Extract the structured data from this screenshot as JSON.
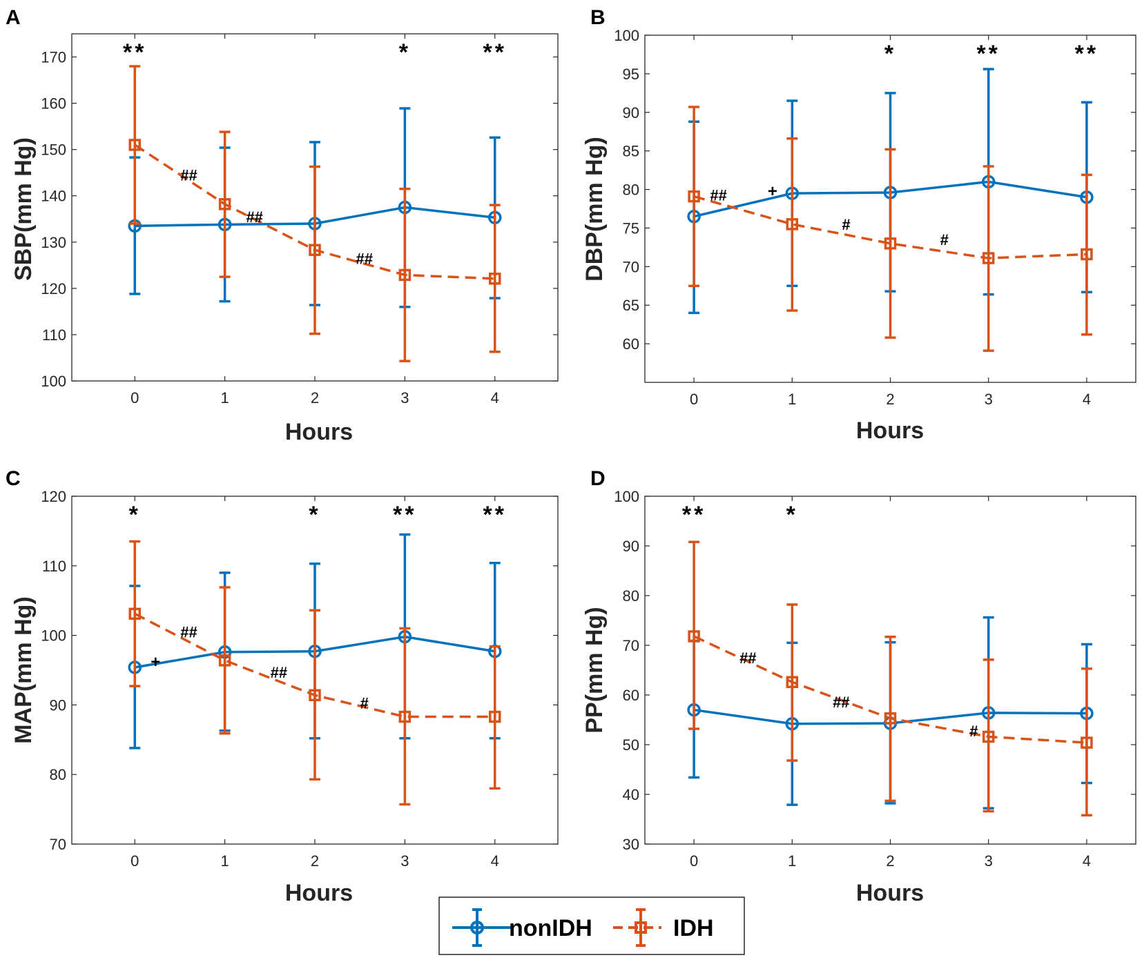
{
  "colors": {
    "nonIDH": "#0072BD",
    "IDH": "#D95319",
    "axis": "#262626"
  },
  "legend": {
    "nonIDH": "nonIDH",
    "IDH": "IDH"
  },
  "chart_data": [
    {
      "id": "A",
      "label": "A",
      "type": "line",
      "xlabel": "Hours",
      "ylabel": "SBP(mm Hg)",
      "x": [
        0,
        1,
        2,
        3,
        4
      ],
      "xticks": [
        "0",
        "1",
        "2",
        "3",
        "4"
      ],
      "ylim": [
        100,
        175
      ],
      "yticks": [
        100,
        110,
        120,
        130,
        140,
        150,
        160,
        170
      ],
      "series": [
        {
          "name": "nonIDH",
          "values": [
            133.5,
            133.8,
            134.0,
            137.5,
            135.3
          ],
          "lower": [
            118.8,
            117.2,
            116.4,
            116.0,
            117.9
          ],
          "upper": [
            148.3,
            150.4,
            151.6,
            158.9,
            152.6
          ]
        },
        {
          "name": "IDH",
          "values": [
            151.0,
            138.2,
            128.3,
            122.9,
            122.1
          ],
          "lower": [
            134.0,
            122.5,
            110.2,
            104.3,
            106.3
          ],
          "upper": [
            168.0,
            153.8,
            146.3,
            141.5,
            138.0
          ]
        }
      ],
      "stars": [
        {
          "x": 0,
          "text": "**"
        },
        {
          "x": 3,
          "text": "*"
        },
        {
          "x": 4,
          "text": "**"
        }
      ],
      "hash": [
        {
          "x": 0.6,
          "y": 144.5,
          "text": "##"
        },
        {
          "x": 1.33,
          "y": 135.5,
          "text": "##"
        },
        {
          "x": 2.55,
          "y": 126.5,
          "text": "##"
        }
      ],
      "plus": []
    },
    {
      "id": "B",
      "label": "B",
      "type": "line",
      "xlabel": "Hours",
      "ylabel": "DBP(mm Hg)",
      "x": [
        0,
        1,
        2,
        3,
        4
      ],
      "xticks": [
        "0",
        "1",
        "2",
        "3",
        "4"
      ],
      "ylim": [
        55,
        100
      ],
      "yticks": [
        60,
        65,
        70,
        75,
        80,
        85,
        90,
        95,
        100
      ],
      "series": [
        {
          "name": "nonIDH",
          "values": [
            76.5,
            79.5,
            79.6,
            81.0,
            79.0
          ],
          "lower": [
            64.0,
            67.5,
            66.8,
            66.4,
            66.7
          ],
          "upper": [
            88.8,
            91.5,
            92.5,
            95.6,
            91.3
          ]
        },
        {
          "name": "IDH",
          "values": [
            79.1,
            75.5,
            73.0,
            71.1,
            71.6
          ],
          "lower": [
            67.5,
            64.3,
            60.8,
            59.1,
            61.2
          ],
          "upper": [
            90.7,
            86.6,
            85.2,
            83.0,
            81.9
          ]
        }
      ],
      "stars": [
        {
          "x": 2,
          "text": "*"
        },
        {
          "x": 3,
          "text": "**"
        },
        {
          "x": 4,
          "text": "**"
        }
      ],
      "hash": [
        {
          "x": 0.25,
          "y": 79.3,
          "text": "##"
        },
        {
          "x": 1.55,
          "y": 75.5,
          "text": "#"
        },
        {
          "x": 2.55,
          "y": 73.5,
          "text": "#"
        }
      ],
      "plus": [
        {
          "x": 0.8,
          "y": 79.8,
          "text": "+"
        }
      ]
    },
    {
      "id": "C",
      "label": "C",
      "type": "line",
      "xlabel": "Hours",
      "ylabel": "MAP(mm Hg)",
      "x": [
        0,
        1,
        2,
        3,
        4
      ],
      "xticks": [
        "0",
        "1",
        "2",
        "3",
        "4"
      ],
      "ylim": [
        70,
        120
      ],
      "yticks": [
        70,
        80,
        90,
        100,
        110,
        120
      ],
      "series": [
        {
          "name": "nonIDH",
          "values": [
            95.4,
            97.6,
            97.7,
            99.8,
            97.7
          ],
          "lower": [
            83.8,
            86.3,
            85.2,
            85.2,
            85.2
          ],
          "upper": [
            107.1,
            109.0,
            110.3,
            114.5,
            110.4
          ]
        },
        {
          "name": "IDH",
          "values": [
            103.1,
            96.4,
            91.4,
            88.3,
            88.3
          ],
          "lower": [
            92.7,
            85.9,
            79.3,
            75.7,
            78.0
          ],
          "upper": [
            113.5,
            106.9,
            103.6,
            101.0,
            98.4
          ]
        }
      ],
      "stars": [
        {
          "x": 0,
          "text": "*"
        },
        {
          "x": 2,
          "text": "*"
        },
        {
          "x": 3,
          "text": "**"
        },
        {
          "x": 4,
          "text": "**"
        }
      ],
      "hash": [
        {
          "x": 0.6,
          "y": 100.5,
          "text": "##"
        },
        {
          "x": 1.6,
          "y": 94.7,
          "text": "##"
        },
        {
          "x": 2.55,
          "y": 90.3,
          "text": "#"
        }
      ],
      "plus": [
        {
          "x": 0.23,
          "y": 96.2,
          "text": "+"
        }
      ]
    },
    {
      "id": "D",
      "label": "D",
      "type": "line",
      "xlabel": "Hours",
      "ylabel": "PP(mm Hg)",
      "x": [
        0,
        1,
        2,
        3,
        4
      ],
      "xticks": [
        "0",
        "1",
        "2",
        "3",
        "4"
      ],
      "ylim": [
        30,
        100
      ],
      "yticks": [
        30,
        40,
        50,
        60,
        70,
        80,
        90,
        100
      ],
      "series": [
        {
          "name": "nonIDH",
          "values": [
            57.0,
            54.2,
            54.3,
            56.4,
            56.3
          ],
          "lower": [
            43.4,
            37.9,
            38.2,
            37.2,
            42.3
          ],
          "upper": [
            70.9,
            70.5,
            70.6,
            75.6,
            70.2
          ]
        },
        {
          "name": "IDH",
          "values": [
            71.8,
            62.6,
            55.3,
            51.6,
            50.4
          ],
          "lower": [
            53.2,
            46.8,
            38.7,
            36.6,
            35.8
          ],
          "upper": [
            90.8,
            78.2,
            71.7,
            67.1,
            65.3
          ]
        }
      ],
      "stars": [
        {
          "x": 0,
          "text": "**"
        },
        {
          "x": 1,
          "text": "*"
        }
      ],
      "hash": [
        {
          "x": 0.55,
          "y": 67.5,
          "text": "##"
        },
        {
          "x": 1.5,
          "y": 58.6,
          "text": "##"
        },
        {
          "x": 2.85,
          "y": 52.8,
          "text": "#"
        }
      ],
      "plus": []
    }
  ]
}
